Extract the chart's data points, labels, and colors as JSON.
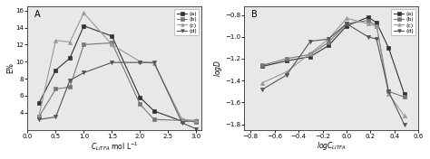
{
  "panel_A": {
    "xlabel": "$C_{LiTFA}$ mol L$^{-1}$",
    "ylabel": "E%",
    "xlim": [
      0.0,
      3.1
    ],
    "ylim": [
      2,
      16.5
    ],
    "yticks": [
      4,
      6,
      8,
      10,
      12,
      14,
      16
    ],
    "xticks": [
      0.0,
      0.5,
      1.0,
      1.5,
      2.0,
      2.5,
      3.0
    ],
    "label": "A",
    "series": {
      "a": {
        "x": [
          0.2,
          0.5,
          0.75,
          1.0,
          1.5,
          2.0,
          2.25,
          2.75,
          3.0
        ],
        "y": [
          5.1,
          9.0,
          10.4,
          14.2,
          13.0,
          5.8,
          4.2,
          3.0,
          3.0
        ],
        "marker": "s",
        "color": "#333333"
      },
      "b": {
        "x": [
          0.2,
          0.5,
          0.75,
          1.0,
          1.5,
          2.0,
          2.25,
          2.75,
          3.0
        ],
        "y": [
          3.5,
          6.8,
          7.0,
          12.0,
          12.2,
          5.0,
          3.2,
          3.1,
          2.9
        ],
        "marker": "s",
        "color": "#777777"
      },
      "c": {
        "x": [
          0.2,
          0.5,
          0.75,
          1.0,
          1.5,
          2.0,
          2.25,
          2.75,
          3.0
        ],
        "y": [
          3.6,
          12.5,
          12.3,
          15.7,
          12.0,
          10.0,
          9.8,
          3.2,
          3.1
        ],
        "marker": "^",
        "color": "#999999"
      },
      "d": {
        "x": [
          0.2,
          0.5,
          0.75,
          1.0,
          1.5,
          2.0,
          2.25,
          2.75,
          3.0
        ],
        "y": [
          3.2,
          3.5,
          7.8,
          8.7,
          9.9,
          9.9,
          9.9,
          2.8,
          2.1
        ],
        "marker": "v",
        "color": "#555555"
      }
    },
    "legend_labels": [
      "(a)",
      "(b)",
      "(c)",
      "(d)"
    ]
  },
  "panel_B": {
    "xlabel": "$logC_{LiTFA}$",
    "ylabel": "$logD$",
    "xlim": [
      -0.85,
      0.6
    ],
    "ylim": [
      -1.85,
      -0.72
    ],
    "yticks": [
      -1.8,
      -1.6,
      -1.4,
      -1.2,
      -1.0,
      -0.8
    ],
    "xticks": [
      -0.8,
      -0.6,
      -0.4,
      -0.2,
      0.0,
      0.2,
      0.4,
      0.6
    ],
    "label": "B",
    "series": {
      "a": {
        "x": [
          -0.7,
          -0.5,
          -0.3,
          -0.15,
          0.0,
          0.18,
          0.25,
          0.35,
          0.48
        ],
        "y": [
          -1.27,
          -1.22,
          -1.18,
          -1.08,
          -0.9,
          -0.82,
          -0.87,
          -1.1,
          -1.52
        ],
        "marker": "s",
        "color": "#333333"
      },
      "b": {
        "x": [
          -0.7,
          -0.5,
          -0.3,
          -0.15,
          0.0,
          0.18,
          0.25,
          0.35,
          0.48
        ],
        "y": [
          -1.26,
          -1.2,
          -1.16,
          -1.05,
          -0.88,
          -0.85,
          -0.9,
          -1.5,
          -1.55
        ],
        "marker": "s",
        "color": "#777777"
      },
      "c": {
        "x": [
          -0.7,
          -0.5,
          -0.3,
          -0.15,
          0.0,
          0.18,
          0.25,
          0.35,
          0.48
        ],
        "y": [
          -1.42,
          -1.32,
          -1.15,
          -1.02,
          -0.83,
          -0.88,
          -0.9,
          -1.52,
          -1.72
        ],
        "marker": "^",
        "color": "#999999"
      },
      "d": {
        "x": [
          -0.7,
          -0.5,
          -0.3,
          -0.15,
          0.0,
          0.18,
          0.25,
          0.35,
          0.48
        ],
        "y": [
          -1.48,
          -1.35,
          -1.04,
          -1.02,
          -0.88,
          -1.0,
          -1.02,
          -1.5,
          -1.8
        ],
        "marker": "v",
        "color": "#555555"
      }
    },
    "legend_labels": [
      "(a)",
      "(b)",
      "(c)",
      "(d)"
    ]
  }
}
